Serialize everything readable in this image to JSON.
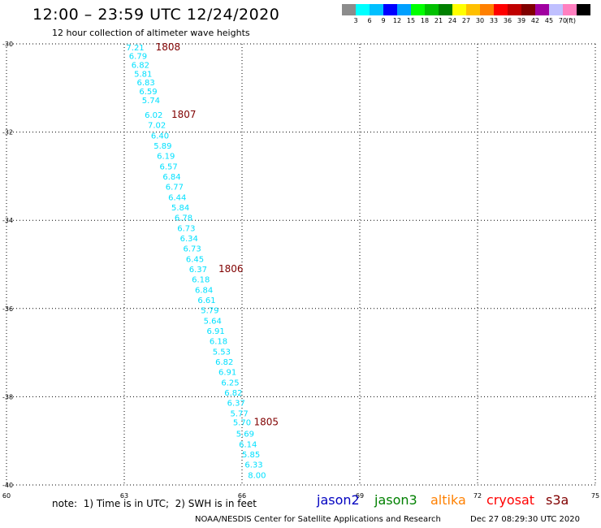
{
  "header": {
    "title": "12:00 – 23:59 UTC 12/24/2020",
    "subtitle": "12 hour collection of altimeter wave heights"
  },
  "legend": {
    "colors": [
      "#8c8c8c",
      "#00ffff",
      "#00c0ff",
      "#0000ff",
      "#00a0ff",
      "#00ff00",
      "#00c000",
      "#008000",
      "#ffff00",
      "#ffc000",
      "#ff8000",
      "#ff0000",
      "#c00000",
      "#800000",
      "#a000a0",
      "#c0c0ff",
      "#ff80c0",
      "#000000"
    ],
    "ticks": [
      "3",
      "6",
      "9",
      "12",
      "15",
      "18",
      "21",
      "24",
      "27",
      "30",
      "33",
      "36",
      "39",
      "42",
      "45",
      "70"
    ],
    "unit": "(ft)"
  },
  "chart_data": {
    "type": "scatter",
    "title": "12:00 – 23:59 UTC 12/24/2020",
    "subtitle": "12 hour collection of altimeter wave heights",
    "xlim": [
      60,
      75
    ],
    "ylim": [
      -40,
      -30
    ],
    "x_ticks": [
      "60",
      "63",
      "66",
      "69",
      "72",
      "75"
    ],
    "y_ticks": [
      "-30",
      "-32",
      "-34",
      "-36",
      "-38",
      "-40"
    ],
    "grid": true,
    "point_color": "#00e0ff",
    "points": [
      {
        "lon": 63.05,
        "lat": -30.07,
        "swh": "7.21"
      },
      {
        "lon": 63.12,
        "lat": -30.27,
        "swh": "6.79"
      },
      {
        "lon": 63.18,
        "lat": -30.47,
        "swh": "6.82"
      },
      {
        "lon": 63.25,
        "lat": -30.67,
        "swh": "5.81"
      },
      {
        "lon": 63.32,
        "lat": -30.87,
        "swh": "6.83"
      },
      {
        "lon": 63.38,
        "lat": -31.07,
        "swh": "6.59"
      },
      {
        "lon": 63.45,
        "lat": -31.27,
        "swh": "5.74"
      },
      {
        "lon": 63.52,
        "lat": -31.6,
        "swh": "6.02"
      },
      {
        "lon": 63.6,
        "lat": -31.83,
        "swh": "7.02"
      },
      {
        "lon": 63.68,
        "lat": -32.07,
        "swh": "6.40"
      },
      {
        "lon": 63.75,
        "lat": -32.3,
        "swh": "5.89"
      },
      {
        "lon": 63.83,
        "lat": -32.53,
        "swh": "6.19"
      },
      {
        "lon": 63.9,
        "lat": -32.77,
        "swh": "6.57"
      },
      {
        "lon": 63.98,
        "lat": -33.0,
        "swh": "6.84"
      },
      {
        "lon": 64.05,
        "lat": -33.23,
        "swh": "6.77"
      },
      {
        "lon": 64.12,
        "lat": -33.47,
        "swh": "6.44"
      },
      {
        "lon": 64.2,
        "lat": -33.7,
        "swh": "5.84"
      },
      {
        "lon": 64.28,
        "lat": -33.93,
        "swh": "6.78"
      },
      {
        "lon": 64.35,
        "lat": -34.17,
        "swh": "6.73"
      },
      {
        "lon": 64.42,
        "lat": -34.4,
        "swh": "6.34"
      },
      {
        "lon": 64.5,
        "lat": -34.63,
        "swh": "6.73"
      },
      {
        "lon": 64.57,
        "lat": -34.87,
        "swh": "6.45"
      },
      {
        "lon": 64.65,
        "lat": -35.1,
        "swh": "6.37"
      },
      {
        "lon": 64.72,
        "lat": -35.33,
        "swh": "6.18"
      },
      {
        "lon": 64.8,
        "lat": -35.57,
        "swh": "6.84"
      },
      {
        "lon": 64.87,
        "lat": -35.8,
        "swh": "6.61"
      },
      {
        "lon": 64.95,
        "lat": -36.03,
        "swh": "5.79"
      },
      {
        "lon": 65.02,
        "lat": -36.27,
        "swh": "5.64"
      },
      {
        "lon": 65.1,
        "lat": -36.5,
        "swh": "6.91"
      },
      {
        "lon": 65.17,
        "lat": -36.73,
        "swh": "6.18"
      },
      {
        "lon": 65.25,
        "lat": -36.97,
        "swh": "5.53"
      },
      {
        "lon": 65.32,
        "lat": -37.2,
        "swh": "6.82"
      },
      {
        "lon": 65.4,
        "lat": -37.43,
        "swh": "6.91"
      },
      {
        "lon": 65.47,
        "lat": -37.67,
        "swh": "6.25"
      },
      {
        "lon": 65.55,
        "lat": -37.9,
        "swh": "6.82"
      },
      {
        "lon": 65.62,
        "lat": -38.13,
        "swh": "6.37"
      },
      {
        "lon": 65.7,
        "lat": -38.37,
        "swh": "5.77"
      },
      {
        "lon": 65.77,
        "lat": -38.57,
        "swh": "5.70"
      },
      {
        "lon": 65.85,
        "lat": -38.83,
        "swh": "5.69"
      },
      {
        "lon": 65.92,
        "lat": -39.07,
        "swh": "6.14"
      },
      {
        "lon": 66.0,
        "lat": -39.3,
        "swh": "5.85"
      },
      {
        "lon": 66.07,
        "lat": -39.53,
        "swh": "6.33"
      },
      {
        "lon": 66.15,
        "lat": -39.77,
        "swh": "8.00"
      }
    ],
    "annotations": [
      {
        "text": "1808",
        "lon": 63.8,
        "lat": -30.07,
        "color": "#800000"
      },
      {
        "text": "1807",
        "lon": 64.2,
        "lat": -31.6,
        "color": "#800000"
      },
      {
        "text": "1806",
        "lon": 65.4,
        "lat": -35.1,
        "color": "#800000"
      },
      {
        "text": "1805",
        "lon": 66.3,
        "lat": -38.57,
        "color": "#800000"
      }
    ]
  },
  "footer": {
    "note": "note:  1) Time is in UTC;  2) SWH is in feet",
    "satellites": [
      {
        "name": "jason2",
        "color": "#0000c0"
      },
      {
        "name": "jason3",
        "color": "#008000"
      },
      {
        "name": "altika",
        "color": "#ff8000"
      },
      {
        "name": "cryosat",
        "color": "#ff0000"
      },
      {
        "name": "s3a",
        "color": "#800000"
      }
    ],
    "credit": "NOAA/NESDIS Center for Satellite Applications and Research",
    "timestamp": "Dec 27 08:29:30 UTC 2020"
  }
}
